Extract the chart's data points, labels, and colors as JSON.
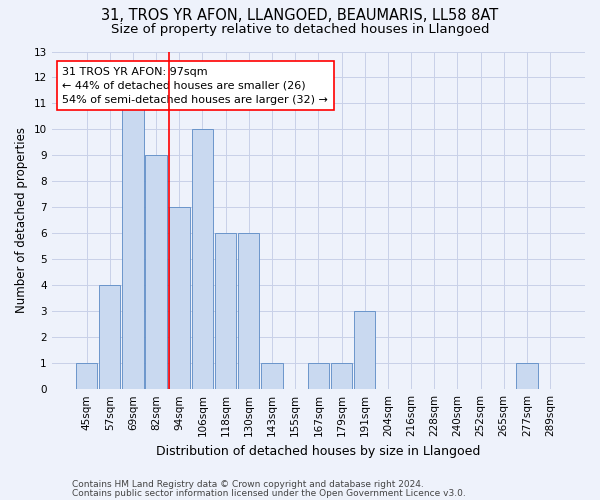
{
  "title1": "31, TROS YR AFON, LLANGOED, BEAUMARIS, LL58 8AT",
  "title2": "Size of property relative to detached houses in Llangoed",
  "xlabel": "Distribution of detached houses by size in Llangoed",
  "ylabel": "Number of detached properties",
  "categories": [
    "45sqm",
    "57sqm",
    "69sqm",
    "82sqm",
    "94sqm",
    "106sqm",
    "118sqm",
    "130sqm",
    "143sqm",
    "155sqm",
    "167sqm",
    "179sqm",
    "191sqm",
    "204sqm",
    "216sqm",
    "228sqm",
    "240sqm",
    "252sqm",
    "265sqm",
    "277sqm",
    "289sqm"
  ],
  "values": [
    1,
    4,
    11,
    9,
    7,
    10,
    6,
    6,
    1,
    0,
    1,
    1,
    3,
    0,
    0,
    0,
    0,
    0,
    0,
    1,
    0
  ],
  "bar_color": "#c9d9f0",
  "bar_edge_color": "#5b8ac5",
  "vline_color": "red",
  "vline_index": 4,
  "annotation_line1": "31 TROS YR AFON: 97sqm",
  "annotation_line2": "← 44% of detached houses are smaller (26)",
  "annotation_line3": "54% of semi-detached houses are larger (32) →",
  "annotation_box_edge": "red",
  "annotation_box_face": "white",
  "ylim": [
    0,
    13
  ],
  "yticks": [
    0,
    1,
    2,
    3,
    4,
    5,
    6,
    7,
    8,
    9,
    10,
    11,
    12,
    13
  ],
  "footer1": "Contains HM Land Registry data © Crown copyright and database right 2024.",
  "footer2": "Contains public sector information licensed under the Open Government Licence v3.0.",
  "background_color": "#eef2fb",
  "grid_color": "#c8d0e8",
  "title1_fontsize": 10.5,
  "title2_fontsize": 9.5,
  "xlabel_fontsize": 9,
  "ylabel_fontsize": 8.5,
  "tick_fontsize": 7.5,
  "annotation_fontsize": 8,
  "footer_fontsize": 6.5
}
